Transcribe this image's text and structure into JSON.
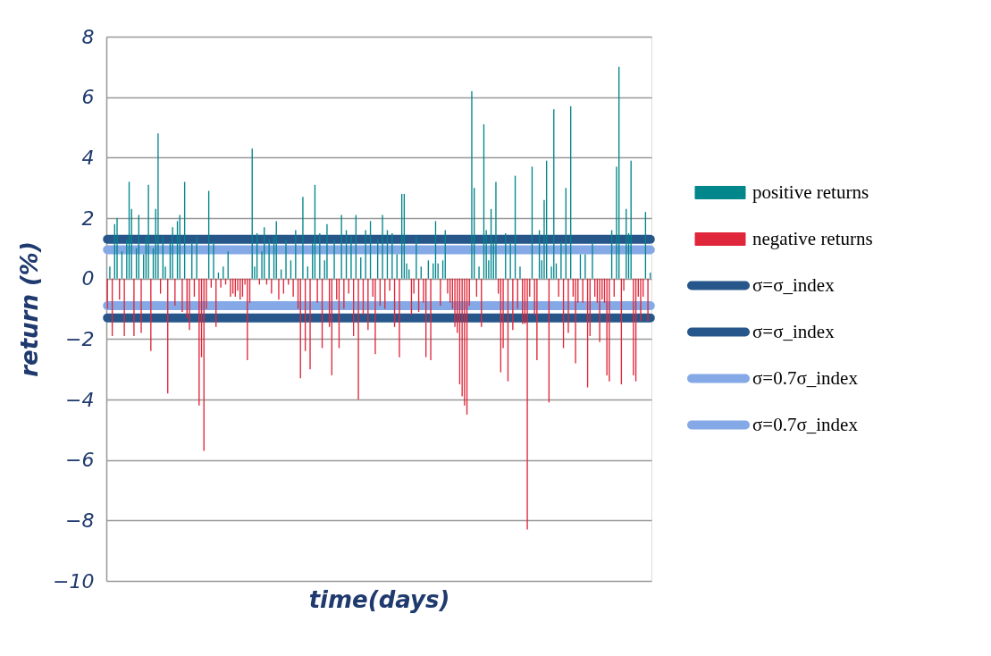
{
  "chart_data": {
    "type": "bar",
    "xlabel": "time(days)",
    "ylabel": "return (%)",
    "categories": [
      null,
      null,
      null,
      null,
      null,
      null,
      null,
      null,
      null,
      null,
      null,
      null,
      null,
      null,
      null,
      null,
      null,
      null,
      null,
      null,
      null,
      null,
      null,
      null,
      null,
      null,
      null,
      null,
      null,
      null,
      null,
      null,
      null,
      null,
      null,
      null,
      null,
      null,
      null,
      null,
      null,
      null,
      null,
      null,
      null,
      null,
      null,
      null,
      null,
      null,
      null,
      null,
      null,
      null,
      null,
      null,
      null,
      null,
      null,
      null,
      null,
      null,
      null,
      null,
      null,
      null,
      null,
      null,
      null,
      null,
      null,
      null,
      null,
      null,
      null,
      null,
      null,
      null,
      null,
      null,
      null,
      null,
      null,
      null,
      null,
      null,
      null,
      null,
      null,
      null,
      null,
      null,
      null,
      null,
      null,
      null,
      null,
      null,
      null,
      null,
      null,
      null,
      null,
      null,
      null,
      null,
      null,
      null,
      null,
      null,
      null,
      null,
      null,
      null,
      null,
      null,
      null,
      null,
      null,
      null,
      null,
      null,
      null,
      null,
      null,
      null,
      null,
      null,
      null,
      null,
      null,
      null,
      null,
      null,
      null,
      null,
      null,
      null,
      null,
      null,
      null,
      null,
      null,
      null,
      null,
      null,
      null,
      null,
      null,
      null,
      null,
      null,
      null,
      null,
      null,
      null,
      null,
      null,
      null,
      null,
      null,
      null,
      null,
      null,
      null,
      null,
      null,
      null,
      null,
      null,
      null,
      null,
      null,
      null,
      null,
      null,
      null,
      null,
      null,
      null,
      null,
      null,
      null,
      null,
      null,
      null,
      null,
      null,
      null,
      null,
      null,
      null,
      null,
      null,
      null,
      null,
      null,
      null,
      null,
      null,
      null,
      null,
      null,
      null,
      null,
      null,
      null,
      null,
      null,
      null,
      null,
      null,
      null,
      null,
      null,
      null,
      null,
      null,
      null,
      null,
      null,
      null,
      null,
      null,
      null,
      null
    ],
    "series": [
      {
        "name": "positive returns",
        "color": "#00868b",
        "values": [
          null,
          0.4,
          null,
          1.8,
          2.0,
          null,
          0.9,
          null,
          1.3,
          3.2,
          2.3,
          null,
          1.0,
          2.1,
          null,
          0.8,
          1.4,
          3.1,
          null,
          1.0,
          2.3,
          4.8,
          null,
          1.4,
          0.4,
          null,
          1.2,
          1.7,
          null,
          1.9,
          2.1,
          null,
          3.2,
          null,
          null,
          1.2,
          null,
          1.4,
          null,
          null,
          null,
          null,
          2.9,
          null,
          1.2,
          null,
          0.2,
          null,
          0.4,
          null,
          0.9,
          null,
          null,
          null,
          null,
          null,
          null,
          null,
          null,
          null,
          4.3,
          0.4,
          1.5,
          null,
          0.9,
          1.7,
          null,
          1.3,
          null,
          1.4,
          1.9,
          null,
          0.3,
          null,
          1.3,
          null,
          0.6,
          null,
          1.6,
          null,
          null,
          2.7,
          null,
          0.4,
          null,
          1.2,
          3.1,
          null,
          1.5,
          null,
          0.6,
          1.8,
          null,
          null,
          1.3,
          null,
          null,
          2.1,
          null,
          1.6,
          null,
          1.4,
          null,
          2.1,
          null,
          0.7,
          null,
          1.6,
          null,
          1.9,
          null,
          null,
          1.3,
          null,
          2.1,
          null,
          1.6,
          null,
          1.5,
          null,
          0.8,
          null,
          2.8,
          2.8,
          0.5,
          0.3,
          null,
          null,
          1.4,
          null,
          0.4,
          null,
          null,
          0.6,
          null,
          0.5,
          1.9,
          0.5,
          null,
          0.6,
          1.6,
          null,
          null,
          null,
          null,
          null,
          null,
          null,
          null,
          null,
          null,
          6.2,
          3.0,
          null,
          0.4,
          null,
          5.1,
          1.6,
          0.6,
          2.3,
          1.2,
          3.2,
          null,
          null,
          null,
          1.5,
          null,
          1.2,
          null,
          3.4,
          null,
          0.4,
          null,
          null,
          null,
          null,
          3.7,
          null,
          null,
          1.6,
          0.6,
          2.6,
          3.9,
          null,
          0.4,
          5.6,
          0.5,
          null,
          1.2,
          null,
          3.0,
          null,
          5.7,
          null,
          null,
          null,
          0.8,
          null,
          0.8,
          null,
          null,
          1.2,
          null,
          null,
          null,
          null,
          null,
          null,
          null,
          1.6,
          null,
          3.7,
          7.0,
          null,
          null,
          2.3,
          1.5,
          3.9,
          null,
          null,
          null,
          null,
          null,
          2.2,
          null,
          0.2
        ]
      },
      {
        "name": "negative returns",
        "color": "#e0263a",
        "values": [
          -1.0,
          null,
          -1.9,
          null,
          null,
          -0.7,
          null,
          -1.9,
          null,
          null,
          null,
          -1.9,
          null,
          null,
          -1.8,
          null,
          null,
          null,
          -2.4,
          null,
          null,
          null,
          -0.5,
          null,
          null,
          -3.8,
          null,
          null,
          -0.9,
          null,
          null,
          -1.1,
          null,
          -1.3,
          -1.7,
          null,
          -0.6,
          null,
          -4.2,
          -2.6,
          -5.7,
          -1.0,
          null,
          -0.3,
          null,
          -1.6,
          null,
          -0.3,
          null,
          -0.2,
          null,
          -0.6,
          -0.5,
          -0.6,
          -0.4,
          -0.7,
          -0.6,
          -0.2,
          -2.7,
          -0.8,
          null,
          null,
          null,
          -0.2,
          null,
          null,
          -0.2,
          null,
          -0.5,
          null,
          null,
          -0.7,
          null,
          -0.5,
          null,
          -0.2,
          null,
          -0.6,
          null,
          -1.0,
          -3.3,
          null,
          -2.4,
          null,
          -3.0,
          null,
          null,
          -0.8,
          null,
          -2.3,
          null,
          null,
          -1.6,
          -3.2,
          null,
          -0.7,
          -2.3,
          null,
          -1.0,
          null,
          -0.5,
          null,
          -1.9,
          null,
          -4.0,
          null,
          -1.2,
          null,
          -1.7,
          null,
          -0.6,
          -2.5,
          null,
          -0.9,
          null,
          -1.0,
          null,
          -0.4,
          null,
          -1.6,
          null,
          -2.6,
          null,
          null,
          null,
          null,
          -1.2,
          -0.5,
          null,
          -1.1,
          null,
          -0.8,
          -2.6,
          null,
          -2.7,
          null,
          null,
          null,
          -0.9,
          null,
          null,
          -0.5,
          -0.8,
          -1.0,
          -1.6,
          -1.8,
          -3.5,
          -3.9,
          -4.2,
          -4.5,
          -0.9,
          null,
          null,
          -0.6,
          null,
          -1.6,
          null,
          null,
          null,
          null,
          null,
          null,
          -0.5,
          -3.1,
          -2.3,
          null,
          -3.4,
          null,
          -1.7,
          null,
          -1.0,
          null,
          -1.5,
          -1.5,
          -8.3,
          -0.6,
          null,
          -1.2,
          -2.7,
          null,
          null,
          null,
          null,
          -4.1,
          null,
          null,
          null,
          -0.6,
          null,
          -2.3,
          null,
          -1.8,
          null,
          -0.6,
          -2.8,
          -0.8,
          null,
          -0.8,
          null,
          -3.6,
          -1.9,
          null,
          -0.6,
          -0.8,
          -2.1,
          -0.7,
          -0.8,
          -3.2,
          -3.4,
          null,
          -0.6,
          null,
          null,
          -3.5,
          -0.4,
          null,
          null,
          null,
          -3.2,
          -3.4,
          -0.6,
          -1.4,
          -0.6,
          null,
          -1.4,
          null
        ]
      },
      {
        "name": "σ=σ_index",
        "type": "line",
        "color": "#27568b",
        "values": [
          1.3,
          1.3,
          1.3,
          1.3,
          1.3,
          1.3,
          1.3,
          1.3,
          1.3,
          1.3,
          1.3,
          1.3,
          1.3,
          1.3,
          1.3,
          1.3,
          1.3,
          1.3,
          1.3,
          1.3,
          1.3,
          1.3,
          1.3,
          1.3,
          1.3,
          1.3,
          1.3,
          1.3,
          1.3,
          1.3,
          1.3,
          1.3,
          1.3,
          1.3,
          1.3,
          1.3,
          1.3,
          1.3,
          1.3,
          1.3,
          1.3,
          1.3,
          1.3,
          1.3,
          1.3,
          1.3,
          1.3,
          1.3,
          1.3,
          1.3,
          1.3,
          1.3,
          1.3,
          1.3,
          1.3,
          1.3,
          1.3,
          1.3,
          1.3,
          1.3,
          1.3,
          1.3,
          1.3,
          1.3,
          1.3,
          1.3,
          1.3,
          1.3,
          1.3,
          1.3,
          1.3,
          1.3,
          1.3,
          1.3,
          1.3,
          1.3,
          1.3,
          1.3,
          1.3,
          1.3,
          1.3,
          1.3,
          1.3,
          1.3,
          1.3,
          1.3,
          1.3,
          1.3,
          1.3,
          1.3,
          1.3,
          1.3,
          1.3,
          1.3,
          1.3,
          1.3,
          1.3,
          1.3,
          1.3,
          1.3,
          1.3,
          1.3,
          1.3,
          1.3,
          1.3,
          1.3,
          1.3,
          1.3,
          1.3,
          1.3,
          1.3,
          1.3,
          1.3,
          1.3,
          1.3,
          1.3,
          1.3,
          1.3,
          1.3,
          1.3,
          1.3,
          1.3,
          1.3,
          1.3,
          1.3,
          1.3,
          1.3,
          1.3,
          1.3,
          1.3,
          1.3,
          1.3,
          1.3,
          1.3,
          1.3,
          1.3,
          1.3,
          1.3,
          1.3,
          1.3,
          1.3,
          1.3,
          1.3,
          1.3,
          1.3,
          1.3,
          1.3,
          1.3,
          1.3,
          1.3,
          1.3,
          1.3,
          1.3,
          1.3,
          1.3,
          1.3,
          1.3,
          1.3,
          1.3,
          1.3,
          1.3,
          1.3,
          1.3,
          1.3,
          1.3,
          1.3,
          1.3,
          1.3,
          1.3,
          1.3,
          1.3,
          1.3,
          1.3,
          1.3,
          1.3,
          1.3,
          1.3,
          1.3,
          1.3,
          1.3,
          1.3,
          1.3,
          1.3,
          1.3,
          1.3,
          1.3,
          1.3,
          1.3,
          1.3,
          1.3,
          1.3,
          1.3,
          1.3,
          1.3,
          1.3,
          1.3,
          1.3,
          1.3,
          1.3,
          1.3,
          1.3,
          1.3,
          1.3,
          1.3,
          1.3,
          1.3,
          1.3,
          1.3,
          1.3,
          1.3,
          1.3,
          1.3,
          1.3,
          1.3,
          1.3,
          1.3,
          1.3,
          1.3,
          1.3,
          1.3,
          1.3,
          1.3,
          1.3,
          1.3,
          1.3,
          1.3
        ]
      },
      {
        "name": "σ=σ_index",
        "type": "line",
        "color": "#27568b",
        "values": [
          -1.3,
          -1.3,
          -1.3,
          -1.3,
          -1.3,
          -1.3,
          -1.3,
          -1.3,
          -1.3,
          -1.3,
          -1.3,
          -1.3,
          -1.3,
          -1.3,
          -1.3,
          -1.3,
          -1.3,
          -1.3,
          -1.3,
          -1.3,
          -1.3,
          -1.3,
          -1.3,
          -1.3,
          -1.3,
          -1.3,
          -1.3,
          -1.3,
          -1.3,
          -1.3,
          -1.3,
          -1.3,
          -1.3,
          -1.3,
          -1.3,
          -1.3,
          -1.3,
          -1.3,
          -1.3,
          -1.3,
          -1.3,
          -1.3,
          -1.3,
          -1.3,
          -1.3,
          -1.3,
          -1.3,
          -1.3,
          -1.3,
          -1.3,
          -1.3,
          -1.3,
          -1.3,
          -1.3,
          -1.3,
          -1.3,
          -1.3,
          -1.3,
          -1.3,
          -1.3,
          -1.3,
          -1.3,
          -1.3,
          -1.3,
          -1.3,
          -1.3,
          -1.3,
          -1.3,
          -1.3,
          -1.3,
          -1.3,
          -1.3,
          -1.3,
          -1.3,
          -1.3,
          -1.3,
          -1.3,
          -1.3,
          -1.3,
          -1.3,
          -1.3,
          -1.3,
          -1.3,
          -1.3,
          -1.3,
          -1.3,
          -1.3,
          -1.3,
          -1.3,
          -1.3,
          -1.3,
          -1.3,
          -1.3,
          -1.3,
          -1.3,
          -1.3,
          -1.3,
          -1.3,
          -1.3,
          -1.3,
          -1.3,
          -1.3,
          -1.3,
          -1.3,
          -1.3,
          -1.3,
          -1.3,
          -1.3,
          -1.3,
          -1.3,
          -1.3,
          -1.3,
          -1.3,
          -1.3,
          -1.3,
          -1.3,
          -1.3,
          -1.3,
          -1.3,
          -1.3,
          -1.3,
          -1.3,
          -1.3,
          -1.3,
          -1.3,
          -1.3,
          -1.3,
          -1.3,
          -1.3,
          -1.3,
          -1.3,
          -1.3,
          -1.3,
          -1.3,
          -1.3,
          -1.3,
          -1.3,
          -1.3,
          -1.3,
          -1.3,
          -1.3,
          -1.3,
          -1.3,
          -1.3,
          -1.3,
          -1.3,
          -1.3,
          -1.3,
          -1.3,
          -1.3,
          -1.3,
          -1.3,
          -1.3,
          -1.3,
          -1.3,
          -1.3,
          -1.3,
          -1.3,
          -1.3,
          -1.3,
          -1.3,
          -1.3,
          -1.3,
          -1.3,
          -1.3,
          -1.3,
          -1.3,
          -1.3,
          -1.3,
          -1.3,
          -1.3,
          -1.3,
          -1.3,
          -1.3,
          -1.3,
          -1.3,
          -1.3,
          -1.3,
          -1.3,
          -1.3,
          -1.3,
          -1.3,
          -1.3,
          -1.3,
          -1.3,
          -1.3,
          -1.3,
          -1.3,
          -1.3,
          -1.3,
          -1.3,
          -1.3,
          -1.3,
          -1.3,
          -1.3,
          -1.3,
          -1.3,
          -1.3,
          -1.3,
          -1.3,
          -1.3,
          -1.3,
          -1.3,
          -1.3,
          -1.3,
          -1.3,
          -1.3,
          -1.3,
          -1.3,
          -1.3,
          -1.3,
          -1.3,
          -1.3,
          -1.3,
          -1.3,
          -1.3,
          -1.3,
          -1.3,
          -1.3,
          -1.3,
          -1.3,
          -1.3,
          -1.3,
          -1.3,
          -1.3,
          -1.3
        ]
      },
      {
        "name": "σ=0.7σ_index",
        "type": "line",
        "color": "#84a9e6",
        "values": [
          0.95,
          0.95,
          0.95,
          0.95,
          0.95,
          0.95,
          0.95,
          0.95,
          0.95,
          0.95,
          0.95,
          0.95,
          0.95,
          0.95,
          0.95,
          0.95,
          0.95,
          0.95,
          0.95,
          0.95,
          0.95,
          0.95,
          0.95,
          0.95,
          0.95,
          0.95,
          0.95,
          0.95,
          0.95,
          0.95,
          0.95,
          0.95,
          0.95,
          0.95,
          0.95,
          0.95,
          0.95,
          0.95,
          0.95,
          0.95,
          0.95,
          0.95,
          0.95,
          0.95,
          0.95,
          0.95,
          0.95,
          0.95,
          0.95,
          0.95,
          0.95,
          0.95,
          0.95,
          0.95,
          0.95,
          0.95,
          0.95,
          0.95,
          0.95,
          0.95,
          0.95,
          0.95,
          0.95,
          0.95,
          0.95,
          0.95,
          0.95,
          0.95,
          0.95,
          0.95,
          0.95,
          0.95,
          0.95,
          0.95,
          0.95,
          0.95,
          0.95,
          0.95,
          0.95,
          0.95,
          0.95,
          0.95,
          0.95,
          0.95,
          0.95,
          0.95,
          0.95,
          0.95,
          0.95,
          0.95,
          0.95,
          0.95,
          0.95,
          0.95,
          0.95,
          0.95,
          0.95,
          0.95,
          0.95,
          0.95,
          0.95,
          0.95,
          0.95,
          0.95,
          0.95,
          0.95,
          0.95,
          0.95,
          0.95,
          0.95,
          0.95,
          0.95,
          0.95,
          0.95,
          0.95,
          0.95,
          0.95,
          0.95,
          0.95,
          0.95,
          0.95,
          0.95,
          0.95,
          0.95,
          0.95,
          0.95,
          0.95,
          0.95,
          0.95,
          0.95,
          0.95,
          0.95,
          0.95,
          0.95,
          0.95,
          0.95,
          0.95,
          0.95,
          0.95,
          0.95,
          0.95,
          0.95,
          0.95,
          0.95,
          0.95,
          0.95,
          0.95,
          0.95,
          0.95,
          0.95,
          0.95,
          0.95,
          0.95,
          0.95,
          0.95,
          0.95,
          0.95,
          0.95,
          0.95,
          0.95,
          0.95,
          0.95,
          0.95,
          0.95,
          0.95,
          0.95,
          0.95,
          0.95,
          0.95,
          0.95,
          0.95,
          0.95,
          0.95,
          0.95,
          0.95,
          0.95,
          0.95,
          0.95,
          0.95,
          0.95,
          0.95,
          0.95,
          0.95,
          0.95,
          0.95,
          0.95,
          0.95,
          0.95,
          0.95,
          0.95,
          0.95,
          0.95,
          0.95,
          0.95,
          0.95,
          0.95,
          0.95,
          0.95,
          0.95,
          0.95,
          0.95,
          0.95,
          0.95,
          0.95,
          0.95,
          0.95,
          0.95,
          0.95,
          0.95,
          0.95,
          0.95,
          0.95,
          0.95,
          0.95,
          0.95,
          0.95,
          0.95,
          0.95,
          0.95,
          0.95,
          0.95,
          0.95,
          0.95,
          0.95,
          0.95,
          0.95
        ]
      },
      {
        "name": "σ=0.7σ_index",
        "type": "line",
        "color": "#84a9e6",
        "values": [
          -0.9,
          -0.9,
          -0.9,
          -0.9,
          -0.9,
          -0.9,
          -0.9,
          -0.9,
          -0.9,
          -0.9,
          -0.9,
          -0.9,
          -0.9,
          -0.9,
          -0.9,
          -0.9,
          -0.9,
          -0.9,
          -0.9,
          -0.9,
          -0.9,
          -0.9,
          -0.9,
          -0.9,
          -0.9,
          -0.9,
          -0.9,
          -0.9,
          -0.9,
          -0.9,
          -0.9,
          -0.9,
          -0.9,
          -0.9,
          -0.9,
          -0.9,
          -0.9,
          -0.9,
          -0.9,
          -0.9,
          -0.9,
          -0.9,
          -0.9,
          -0.9,
          -0.9,
          -0.9,
          -0.9,
          -0.9,
          -0.9,
          -0.9,
          -0.9,
          -0.9,
          -0.9,
          -0.9,
          -0.9,
          -0.9,
          -0.9,
          -0.9,
          -0.9,
          -0.9,
          -0.9,
          -0.9,
          -0.9,
          -0.9,
          -0.9,
          -0.9,
          -0.9,
          -0.9,
          -0.9,
          -0.9,
          -0.9,
          -0.9,
          -0.9,
          -0.9,
          -0.9,
          -0.9,
          -0.9,
          -0.9,
          -0.9,
          -0.9,
          -0.9,
          -0.9,
          -0.9,
          -0.9,
          -0.9,
          -0.9,
          -0.9,
          -0.9,
          -0.9,
          -0.9,
          -0.9,
          -0.9,
          -0.9,
          -0.9,
          -0.9,
          -0.9,
          -0.9,
          -0.9,
          -0.9,
          -0.9,
          -0.9,
          -0.9,
          -0.9,
          -0.9,
          -0.9,
          -0.9,
          -0.9,
          -0.9,
          -0.9,
          -0.9,
          -0.9,
          -0.9,
          -0.9,
          -0.9,
          -0.9,
          -0.9,
          -0.9,
          -0.9,
          -0.9,
          -0.9,
          -0.9,
          -0.9,
          -0.9,
          -0.9,
          -0.9,
          -0.9,
          -0.9,
          -0.9,
          -0.9,
          -0.9,
          -0.9,
          -0.9,
          -0.9,
          -0.9,
          -0.9,
          -0.9,
          -0.9,
          -0.9,
          -0.9,
          -0.9,
          -0.9,
          -0.9,
          -0.9,
          -0.9,
          -0.9,
          -0.9,
          -0.9,
          -0.9,
          -0.9,
          -0.9,
          -0.9,
          -0.9,
          -0.9,
          -0.9,
          -0.9,
          -0.9,
          -0.9,
          -0.9,
          -0.9,
          -0.9,
          -0.9,
          -0.9,
          -0.9,
          -0.9,
          -0.9,
          -0.9,
          -0.9,
          -0.9,
          -0.9,
          -0.9,
          -0.9,
          -0.9,
          -0.9,
          -0.9,
          -0.9,
          -0.9,
          -0.9,
          -0.9,
          -0.9,
          -0.9,
          -0.9,
          -0.9,
          -0.9,
          -0.9,
          -0.9,
          -0.9,
          -0.9,
          -0.9,
          -0.9,
          -0.9,
          -0.9,
          -0.9,
          -0.9,
          -0.9,
          -0.9,
          -0.9,
          -0.9,
          -0.9,
          -0.9,
          -0.9,
          -0.9,
          -0.9,
          -0.9,
          -0.9,
          -0.9,
          -0.9,
          -0.9,
          -0.9,
          -0.9,
          -0.9,
          -0.9,
          -0.9,
          -0.9,
          -0.9,
          -0.9,
          -0.9,
          -0.9,
          -0.9,
          -0.9,
          -0.9,
          -0.9,
          -0.9,
          -0.9,
          -0.9,
          -0.9,
          -0.9
        ]
      }
    ],
    "ylim": [
      -10,
      8
    ],
    "yticks": [
      -10,
      -8,
      -6,
      -4,
      -2,
      0,
      2,
      4,
      6,
      8
    ],
    "grid": "y",
    "legend": "right"
  }
}
